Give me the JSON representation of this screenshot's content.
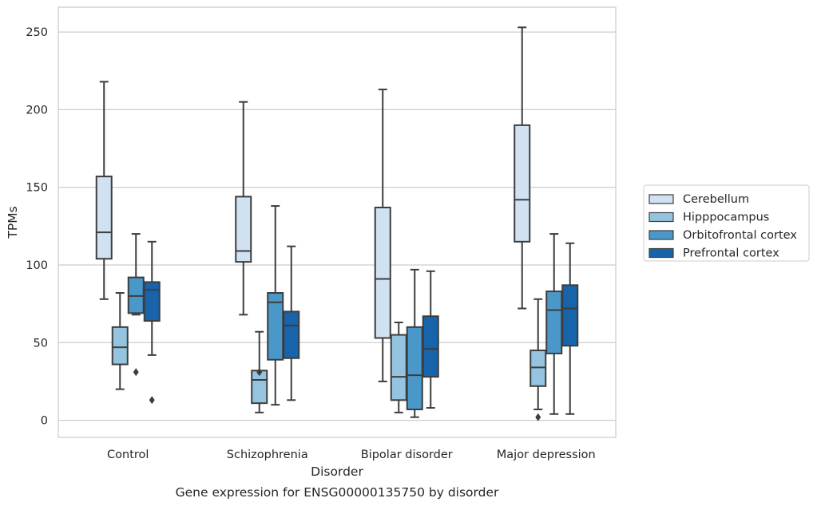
{
  "chart_data": {
    "type": "boxplot",
    "title": "Gene expression for ENSG00000135750 by disorder",
    "xlabel": "Disorder",
    "ylabel": "TPMs",
    "categories": [
      "Control",
      "Schizophrenia",
      "Bipolar disorder",
      "Major depression"
    ],
    "yticks": [
      0,
      50,
      100,
      150,
      200,
      250
    ],
    "ylim": [
      -11,
      266
    ],
    "grid": "horizontal",
    "legend_placement": "center-right",
    "series": [
      {
        "name": "Cerebellum",
        "color": "#d0e1f2",
        "boxes": [
          {
            "whislo": 78,
            "q1": 104,
            "med": 121,
            "q3": 157,
            "whishi": 218,
            "fliers": []
          },
          {
            "whislo": 68,
            "q1": 102,
            "med": 109,
            "q3": 144,
            "whishi": 205,
            "fliers": []
          },
          {
            "whislo": 25,
            "q1": 53,
            "med": 91,
            "q3": 137,
            "whishi": 213,
            "fliers": []
          },
          {
            "whislo": 72,
            "q1": 115,
            "med": 142,
            "q3": 190,
            "whishi": 253,
            "fliers": []
          }
        ]
      },
      {
        "name": "Hipppocampus",
        "color": "#94c4df",
        "boxes": [
          {
            "whislo": 20,
            "q1": 36,
            "med": 47,
            "q3": 60,
            "whishi": 82,
            "fliers": []
          },
          {
            "whislo": 5,
            "q1": 11,
            "med": 26,
            "q3": 32,
            "whishi": 57,
            "fliers": [
              31
            ]
          },
          {
            "whislo": 5,
            "q1": 13,
            "med": 28,
            "q3": 55,
            "whishi": 63,
            "fliers": []
          },
          {
            "whislo": 7,
            "q1": 22,
            "med": 34,
            "q3": 45,
            "whishi": 78,
            "fliers": [
              2
            ]
          }
        ]
      },
      {
        "name": "Orbitofrontal cortex",
        "color": "#4a98c9",
        "boxes": [
          {
            "whislo": 68,
            "q1": 69,
            "med": 80,
            "q3": 92,
            "whishi": 120,
            "fliers": [
              31
            ]
          },
          {
            "whislo": 10,
            "q1": 39,
            "med": 76,
            "q3": 82,
            "whishi": 138,
            "fliers": []
          },
          {
            "whislo": 2,
            "q1": 7,
            "med": 29,
            "q3": 60,
            "whishi": 97,
            "fliers": []
          },
          {
            "whislo": 4,
            "q1": 43,
            "med": 71,
            "q3": 83,
            "whishi": 120,
            "fliers": []
          }
        ]
      },
      {
        "name": "Prefrontal cortex",
        "color": "#1764ab",
        "boxes": [
          {
            "whislo": 42,
            "q1": 64,
            "med": 84,
            "q3": 89,
            "whishi": 115,
            "fliers": [
              13
            ]
          },
          {
            "whislo": 13,
            "q1": 40,
            "med": 61,
            "q3": 70,
            "whishi": 112,
            "fliers": []
          },
          {
            "whislo": 8,
            "q1": 28,
            "med": 46,
            "q3": 67,
            "whishi": 96,
            "fliers": []
          },
          {
            "whislo": 4,
            "q1": 48,
            "med": 72,
            "q3": 87,
            "whishi": 114,
            "fliers": []
          }
        ]
      }
    ]
  }
}
